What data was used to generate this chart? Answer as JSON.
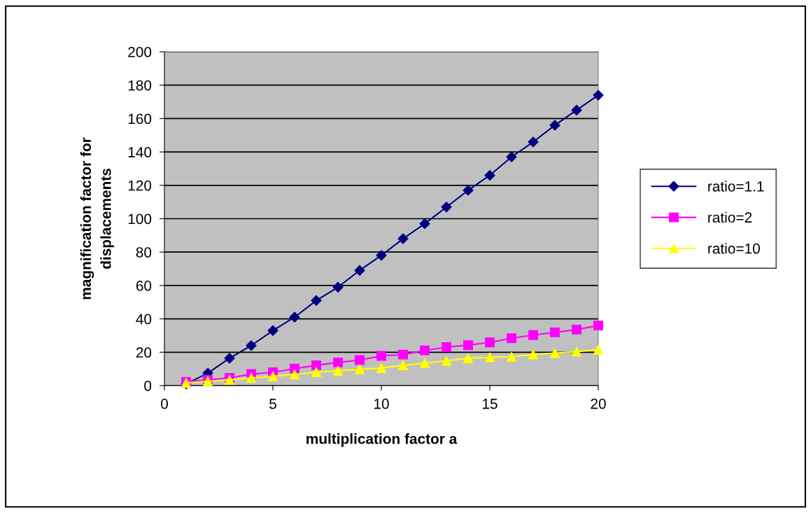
{
  "chart_data": {
    "type": "line",
    "xlabel": "multiplication factor a",
    "ylabel": "magnification factor for\ndisplacements",
    "x": [
      1,
      2,
      3,
      4,
      5,
      6,
      7,
      8,
      9,
      10,
      11,
      12,
      13,
      14,
      15,
      16,
      17,
      18,
      19,
      20
    ],
    "series": [
      {
        "name": "ratio=1.1",
        "color": "#000080",
        "marker": "diamond",
        "values": [
          1,
          7.5,
          16.4,
          24,
          33,
          41,
          51,
          59,
          69,
          78,
          88,
          97,
          107,
          117,
          126,
          137,
          146,
          156,
          165,
          174
        ]
      },
      {
        "name": "ratio=2",
        "color": "#ff00ff",
        "marker": "square",
        "values": [
          2.2,
          3.4,
          4.6,
          6.9,
          8,
          10.2,
          12.2,
          13.9,
          15.3,
          17.8,
          18.6,
          21.1,
          23.1,
          24.2,
          25.9,
          28.4,
          30.3,
          31.9,
          33.6,
          36
        ]
      },
      {
        "name": "ratio=10",
        "color": "#ffff00",
        "marker": "triangle",
        "values": [
          1.6,
          2.6,
          3.4,
          4.6,
          5.5,
          6.7,
          8,
          8.9,
          9.7,
          10.6,
          12.2,
          13.4,
          14.8,
          16.4,
          17,
          17.3,
          18.6,
          19.5,
          20.3,
          21.5
        ]
      }
    ],
    "xlim": [
      0,
      20
    ],
    "xticks": [
      0,
      5,
      10,
      15,
      20
    ],
    "ylim": [
      0,
      200
    ],
    "yticks": [
      0,
      20,
      40,
      60,
      80,
      100,
      120,
      140,
      160,
      180,
      200
    ],
    "grid": "y",
    "legend": "right",
    "line_style": "solid"
  }
}
